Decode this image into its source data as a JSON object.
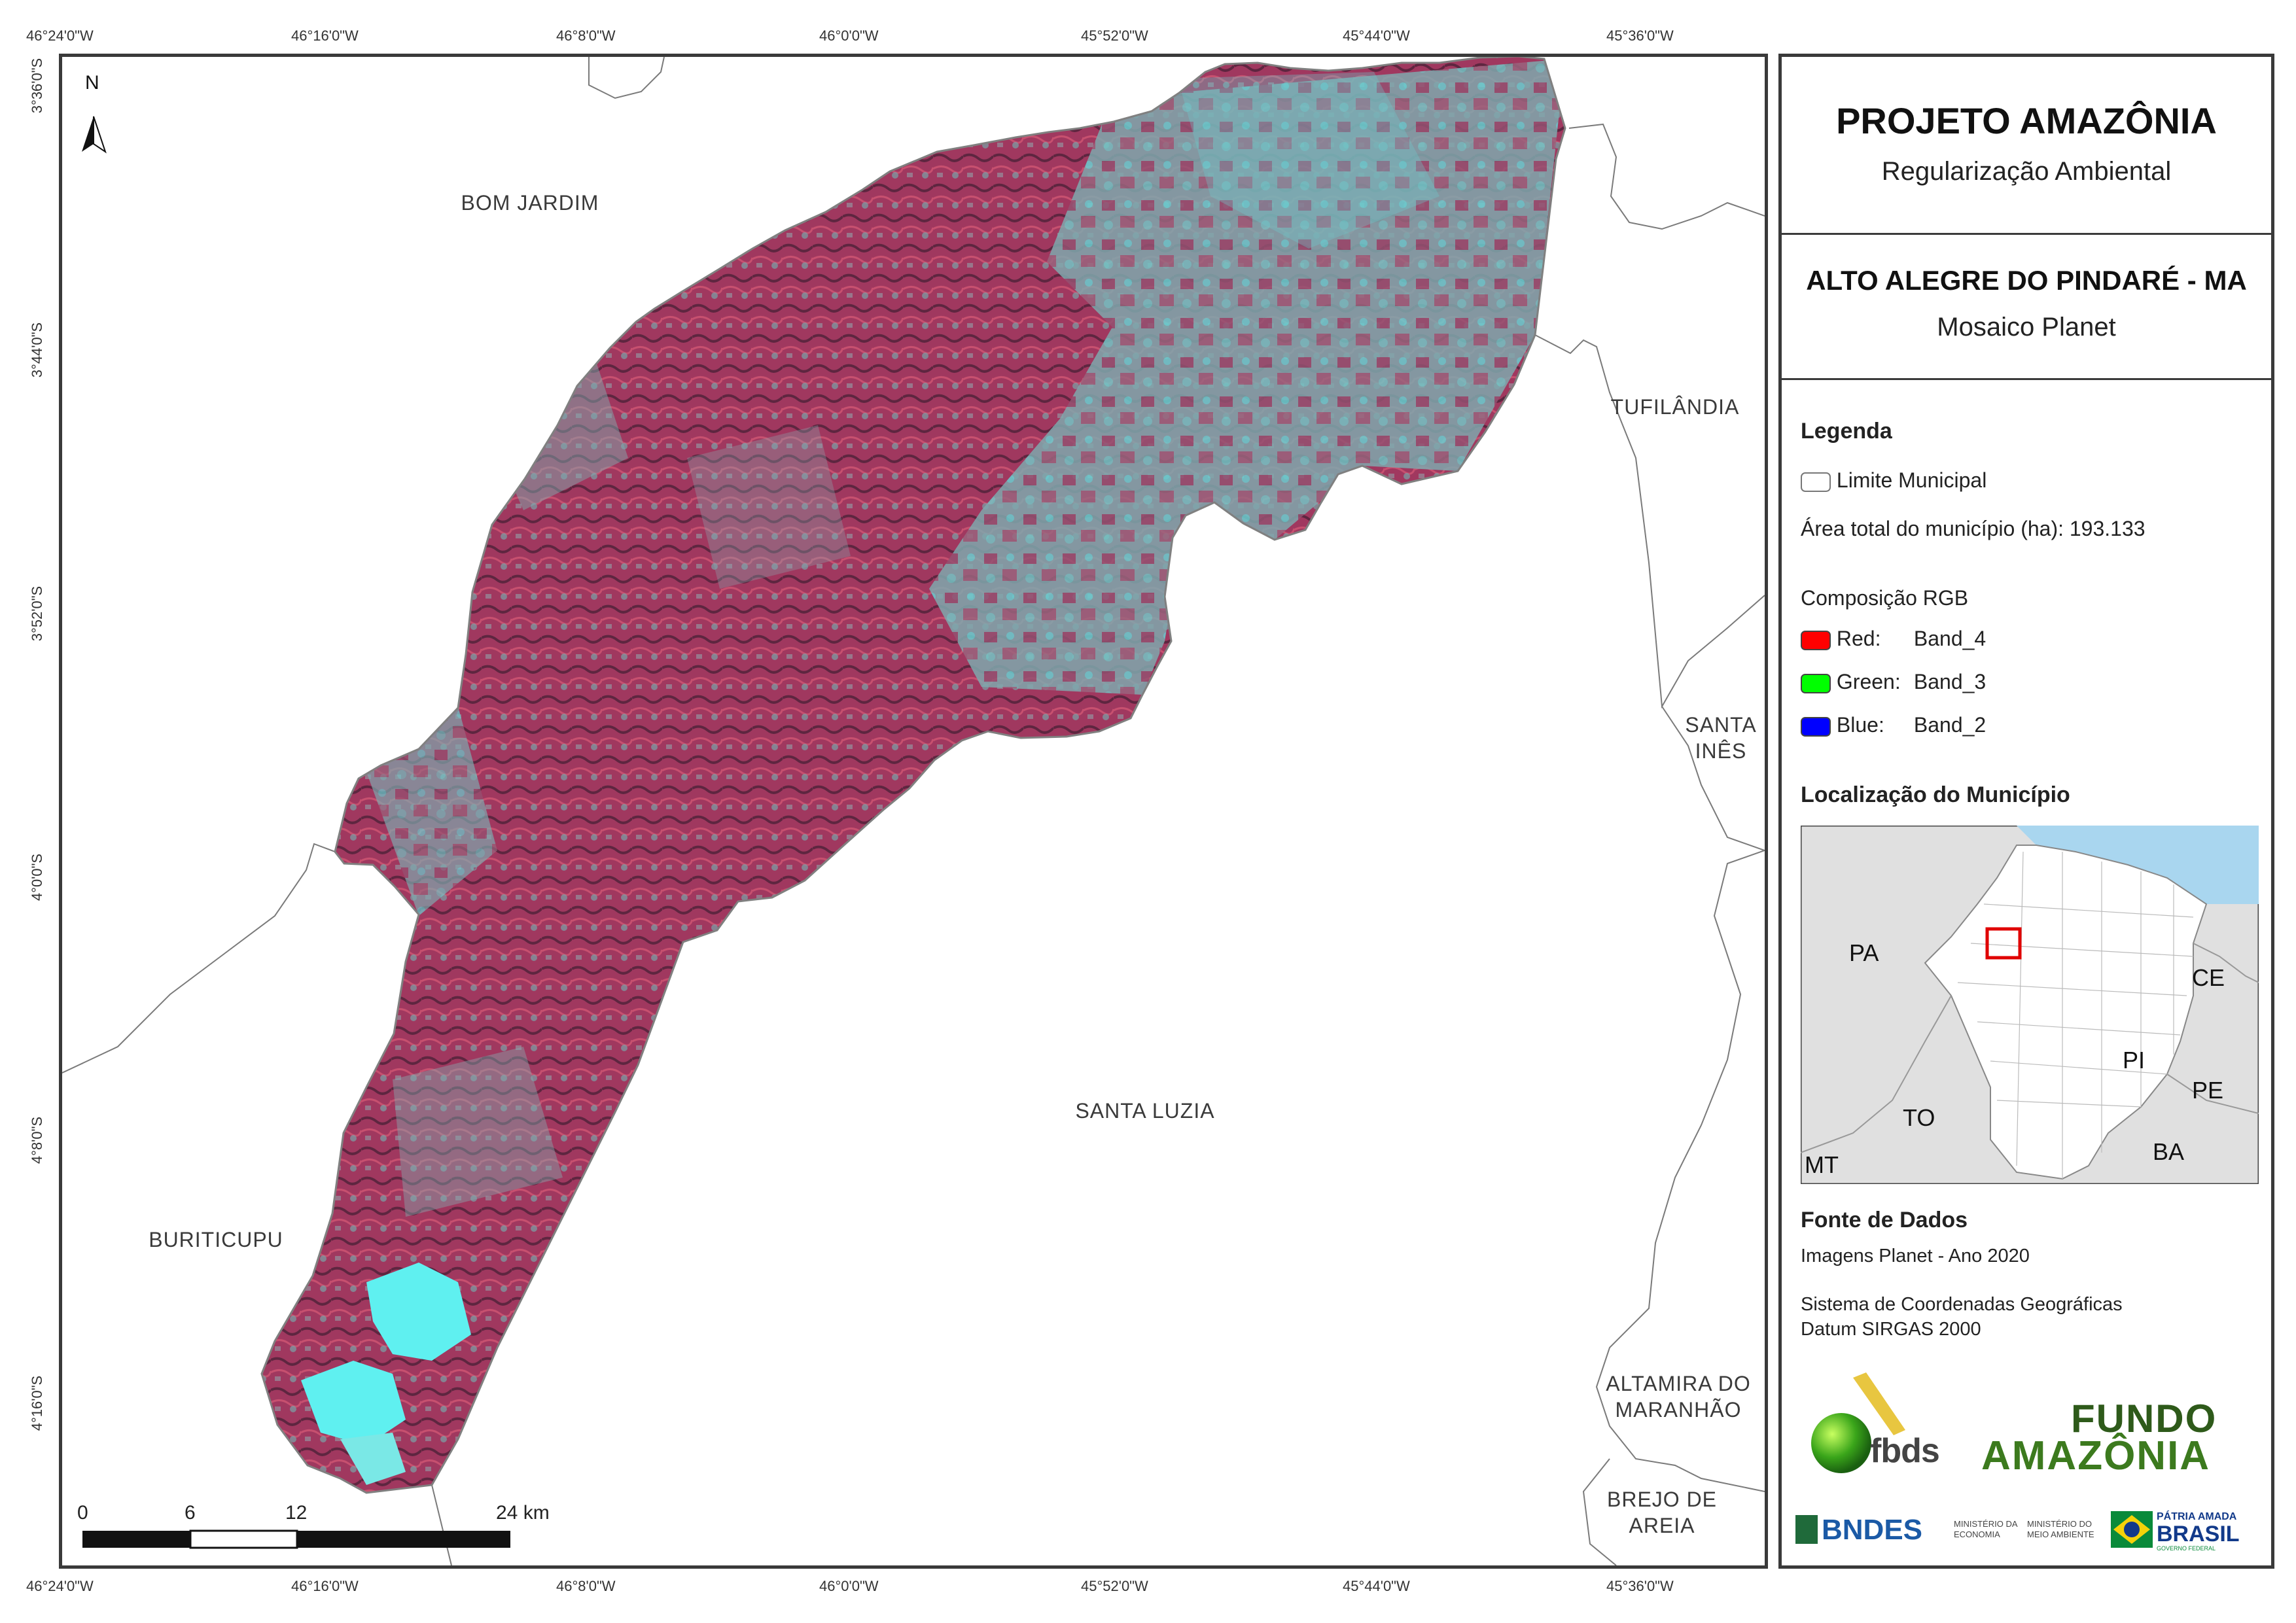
{
  "map": {
    "top_ticks": [
      "46°24'0\"W",
      "46°16'0\"W",
      "46°8'0\"W",
      "46°0'0\"W",
      "45°52'0\"W",
      "45°44'0\"W",
      "45°36'0\"W"
    ],
    "bottom_ticks": [
      "46°24'0\"W",
      "46°16'0\"W",
      "46°8'0\"W",
      "46°0'0\"W",
      "45°52'0\"W",
      "45°44'0\"W",
      "45°36'0\"W"
    ],
    "left_ticks": [
      "3°36'0\"S",
      "3°44'0\"S",
      "3°52'0\"S",
      "4°0'0\"S",
      "4°8'0\"S",
      "4°16'0\"S"
    ],
    "north_label": "N",
    "municipalities": {
      "bom_jardim": "BOM JARDIM",
      "tufilandia": "TUFILÂNDIA",
      "santa_ines_1": "SANTA",
      "santa_ines_2": "INÊS",
      "santa_luzia": "SANTA LUZIA",
      "buriticupu": "BURITICUPU",
      "altamira_1": "ALTAMIRA DO",
      "altamira_2": "MARANHÃO",
      "brejo_1": "BREJO DE",
      "brejo_2": "AREIA"
    },
    "scale": {
      "labels": [
        "0",
        "6",
        "12",
        "24 km"
      ]
    }
  },
  "panel": {
    "title": "PROJETO AMAZÔNIA",
    "subtitle": "Regularização Ambiental",
    "municipality": "ALTO ALEGRE DO PINDARÉ - MA",
    "mosaic": "Mosaico Planet",
    "legend": {
      "heading": "Legenda",
      "limit_label": "Limite Municipal",
      "area_text": "Área total do município (ha): 193.133",
      "rgb_heading": "Composição RGB",
      "bands": [
        {
          "name": "Red:",
          "band": "Band_4",
          "color": "#ff0000"
        },
        {
          "name": "Green:",
          "band": "Band_3",
          "color": "#00ff00"
        },
        {
          "name": "Blue:",
          "band": "Band_2",
          "color": "#0000ff"
        }
      ]
    },
    "location": {
      "heading": "Localização do Município",
      "states": {
        "pa": "PA",
        "ce": "CE",
        "pi": "PI",
        "pe": "PE",
        "to": "TO",
        "ba": "BA",
        "mt": "MT"
      }
    },
    "sources": {
      "heading": "Fonte de Dados",
      "line1": "Imagens Planet - Ano 2020",
      "line2": "Sistema de Coordenadas Geográficas",
      "line3": "Datum SIRGAS 2000"
    },
    "logos": {
      "fbds": "fbds",
      "fundo_1": "FUNDO",
      "fundo_2": "AMAZÔNIA",
      "bndes": "BNDES",
      "min_economia_1": "MINISTÉRIO DA",
      "min_economia_2": "ECONOMIA",
      "min_ambiente_1": "MINISTÉRIO DO",
      "min_ambiente_2": "MEIO AMBIENTE",
      "patria_1": "PÁTRIA AMADA",
      "patria_2": "BRASIL",
      "patria_3": "GOVERNO FEDERAL"
    }
  }
}
